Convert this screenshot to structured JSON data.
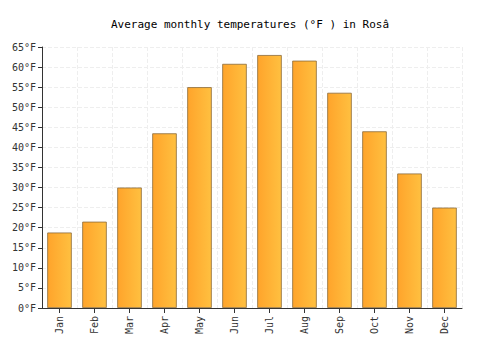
{
  "chart_data": {
    "type": "bar",
    "title": "Average monthly temperatures (°F ) in Rosâ",
    "categories": [
      "Jan",
      "Feb",
      "Mar",
      "Apr",
      "May",
      "Jun",
      "Jul",
      "Aug",
      "Sep",
      "Oct",
      "Nov",
      "Dec"
    ],
    "values": [
      18.8,
      21.5,
      30,
      43.5,
      55,
      60.8,
      63,
      61.6,
      53.6,
      44,
      33.5,
      25
    ],
    "color": "#ffa42b",
    "ylim": [
      0,
      65
    ],
    "yticks": [
      {
        "value": 0,
        "label": "0°F"
      },
      {
        "value": 5,
        "label": "5°F"
      },
      {
        "value": 10,
        "label": "10°F"
      },
      {
        "value": 15,
        "label": "15°F"
      },
      {
        "value": 20,
        "label": "20°F"
      },
      {
        "value": 25,
        "label": "25°F"
      },
      {
        "value": 30,
        "label": "30°F"
      },
      {
        "value": 35,
        "label": "35°F"
      },
      {
        "value": 40,
        "label": "40°F"
      },
      {
        "value": 45,
        "label": "45°F"
      },
      {
        "value": 50,
        "label": "50°F"
      },
      {
        "value": 55,
        "label": "55°F"
      },
      {
        "value": 60,
        "label": "60°F"
      },
      {
        "value": 65,
        "label": "65°F"
      }
    ],
    "grid": true
  }
}
